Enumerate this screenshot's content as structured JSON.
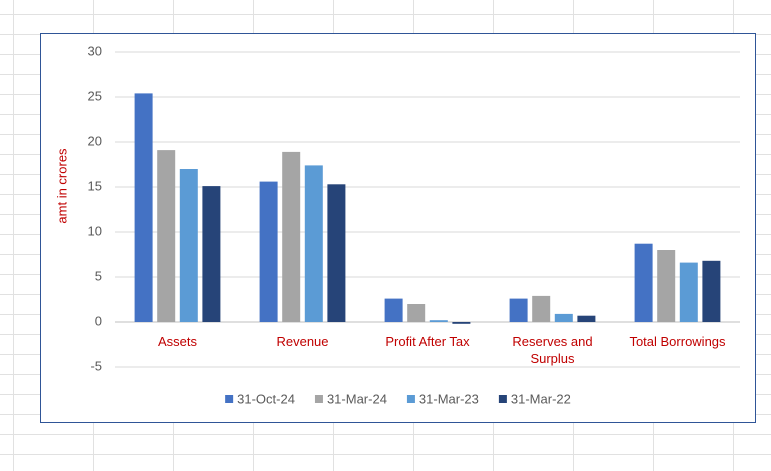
{
  "chart_data": {
    "type": "bar",
    "y_axis_label": "amt in crores",
    "categories": [
      "Assets",
      "Revenue",
      "Profit After Tax",
      "Reserves and Surplus",
      "Total Borrowings"
    ],
    "series": [
      {
        "name": "31-Oct-24",
        "color": "#4472c4",
        "values": [
          25.4,
          15.6,
          2.6,
          2.6,
          8.7
        ]
      },
      {
        "name": "31-Mar-24",
        "color": "#a5a5a5",
        "values": [
          19.1,
          18.9,
          2.0,
          2.9,
          8.0
        ]
      },
      {
        "name": "31-Mar-23",
        "color": "#5b9bd5",
        "values": [
          17.0,
          17.4,
          0.2,
          0.9,
          6.6
        ]
      },
      {
        "name": "31-Mar-22",
        "color": "#264478",
        "values": [
          15.1,
          15.3,
          -0.2,
          0.7,
          6.8
        ]
      }
    ],
    "ylim": [
      -5,
      30
    ],
    "yticks": [
      -5,
      0,
      5,
      10,
      15,
      20,
      25,
      30
    ],
    "grid": true,
    "legend": "bottom"
  }
}
